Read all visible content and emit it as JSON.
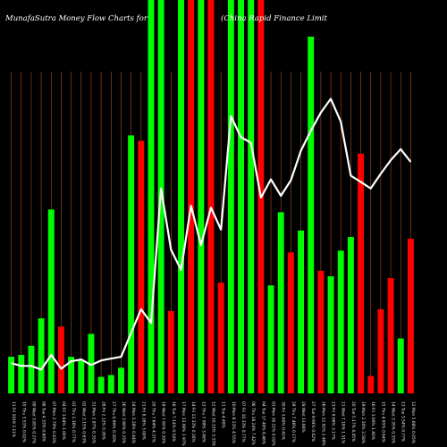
{
  "chart_data": {
    "type": "bar",
    "title": "MunafaSutra  Money Flow  Charts for ",
    "title_right": "(China Rapid Finance   Limit",
    "background": "#000000",
    "colors": {
      "up": "#00ff00",
      "down": "#ff0000",
      "line": "#ffffff",
      "grid": "#a0522d",
      "text": "#ffffff"
    },
    "grid": true,
    "categories": [
      "11 Fri 2019 Jan",
      "10 Thu 2019 Jan",
      "09 Wed 2019 Jan",
      "08 Tue 2019 Jan",
      "07 Mon 2019 Jan",
      "04 Fri 2019 Jan",
      "03 Thu 2019 Jan",
      "02 Wed 2019 Jan",
      "31 Mon 2018 Dec",
      "28 Fri 2018 Dec",
      "27 Thu 2018 Dec",
      "26 Wed 2018 Dec",
      "24 Mon 2018 Dec",
      "21 Fri 2018 Dec",
      "20 Thu 2018 Dec",
      "19 Wed 2018 Dec",
      "18 Tue 2018 Dec",
      "17 Mon 2018 Dec",
      "14 Fri 2018 Dec",
      "13 Thu 2018 Dec",
      "12 Wed 2018 Dec",
      "11 Tue 2018 Dec",
      "10 Mon 2018 Dec",
      "07 Fri 2018 Dec",
      "06 Thu 2018 Dec",
      "04 Tue 2018 Dec",
      "03 Mon 2018 Dec",
      "30 Fri 2018 Nov",
      "29 Thu 2018 Nov",
      "28 Wed 2018 Nov",
      "27 Tue 2018 Nov",
      "26 Mon 2018 Nov",
      "23 Fri 2018 Nov",
      "21 Wed 2018 Nov",
      "20 Tue 2018 Nov",
      "19 Mon 2018 Nov",
      "16 Fri 2018 Nov",
      "15 Thu 2018 Nov",
      "14 Wed 2018 Nov",
      "13 Tue 2018 Nov",
      "12 Mon 2018 Nov"
    ],
    "tick_labels": [
      "11 Fri 2019 3.11%",
      "10 Thu 3.51% 0.02%",
      "09 Wed 3.85% 0.27%",
      "08 Tue 4.33% 0.60%",
      "07 Mon 2.70% 0.43%",
      "04 Fri 3.64% 1.00%",
      "03 Thu 1.16% 0.77%",
      "02 Wed 3.15% 0.63%",
      "31 Mon 1.97% 0.35%",
      "28 Fri 2.12% 0.26%",
      "27 Thu 0.90% 0.30%",
      "26 Wed 3.90% 0.25%",
      "24 Mon 3.28% 0.44%",
      "21 Fri 8.16% 3.00%",
      "20 Thu 7.64% 4.37%",
      "19 Wed 7.85% 0.20%",
      "18 Tue 7.14% 0.54%",
      "17 Mon 13.08% 1.97%",
      "14 Fri 13.33% 0.16%",
      "13 Thu 7.99% 3.48%",
      "12 Wed 10.15% 3.33%",
      "11 Tue 4.48%",
      "10 Mon 6.13% 4.55%",
      "07 Fri 10.33% 0.77%",
      "06 Thu 18.24% 7.42%",
      "04 Tue 17.40% 8.46%",
      "03 Mon 16.21% 0.02%",
      "30 Fri 3.60% 0.42%",
      "29 Thu 7.46% 0.17%",
      "28 Wed 13.66%",
      "27 Tue 9.94% 0.02%",
      "26 Mon 12.92% 2.49%",
      "23 Fri 9.06% 3.17%",
      "21 Wed 7.18% 1.51%",
      "20 Tue 5.17% 4.45%",
      "19 Mon 2.30% 3.58%",
      "16 Fri 3.00% 1.40%",
      "15 Thu 4.95% 0.64%",
      "14 Wed 3.35% 0.35%",
      "13 Tue 3.54% 0.77%",
      "12 Mon 5.68% 0.05%"
    ],
    "series": [
      {
        "type": "bar",
        "values": [
          40,
          42,
          52,
          82,
          201,
          73,
          40,
          37,
          65,
          18,
          20,
          28,
          282,
          276,
          430,
          430,
          90,
          430,
          430,
          430,
          430,
          121,
          430,
          430,
          430,
          430,
          118,
          198,
          154,
          178,
          390,
          134,
          128,
          156,
          171,
          262,
          19,
          92,
          126,
          60,
          169
        ],
        "direction": [
          "up",
          "up",
          "up",
          "up",
          "up",
          "down",
          "up",
          "up",
          "up",
          "up",
          "up",
          "up",
          "up",
          "down",
          "up",
          "up",
          "down",
          "up",
          "down",
          "up",
          "down",
          "down",
          "up",
          "up",
          "up",
          "down",
          "up",
          "up",
          "down",
          "up",
          "up",
          "down",
          "up",
          "up",
          "up",
          "down",
          "down",
          "down",
          "down",
          "up",
          "down"
        ]
      },
      {
        "type": "line",
        "values": [
          33,
          30,
          30,
          26,
          42,
          27,
          35,
          37,
          31,
          36,
          38,
          40,
          66,
          92,
          77,
          224,
          157,
          135,
          205,
          162,
          203,
          179,
          303,
          280,
          274,
          214,
          234,
          216,
          233,
          265,
          287,
          307,
          322,
          297,
          238,
          231,
          224,
          240,
          255,
          267,
          253
        ]
      }
    ],
    "ylim": [
      0,
      430
    ]
  }
}
